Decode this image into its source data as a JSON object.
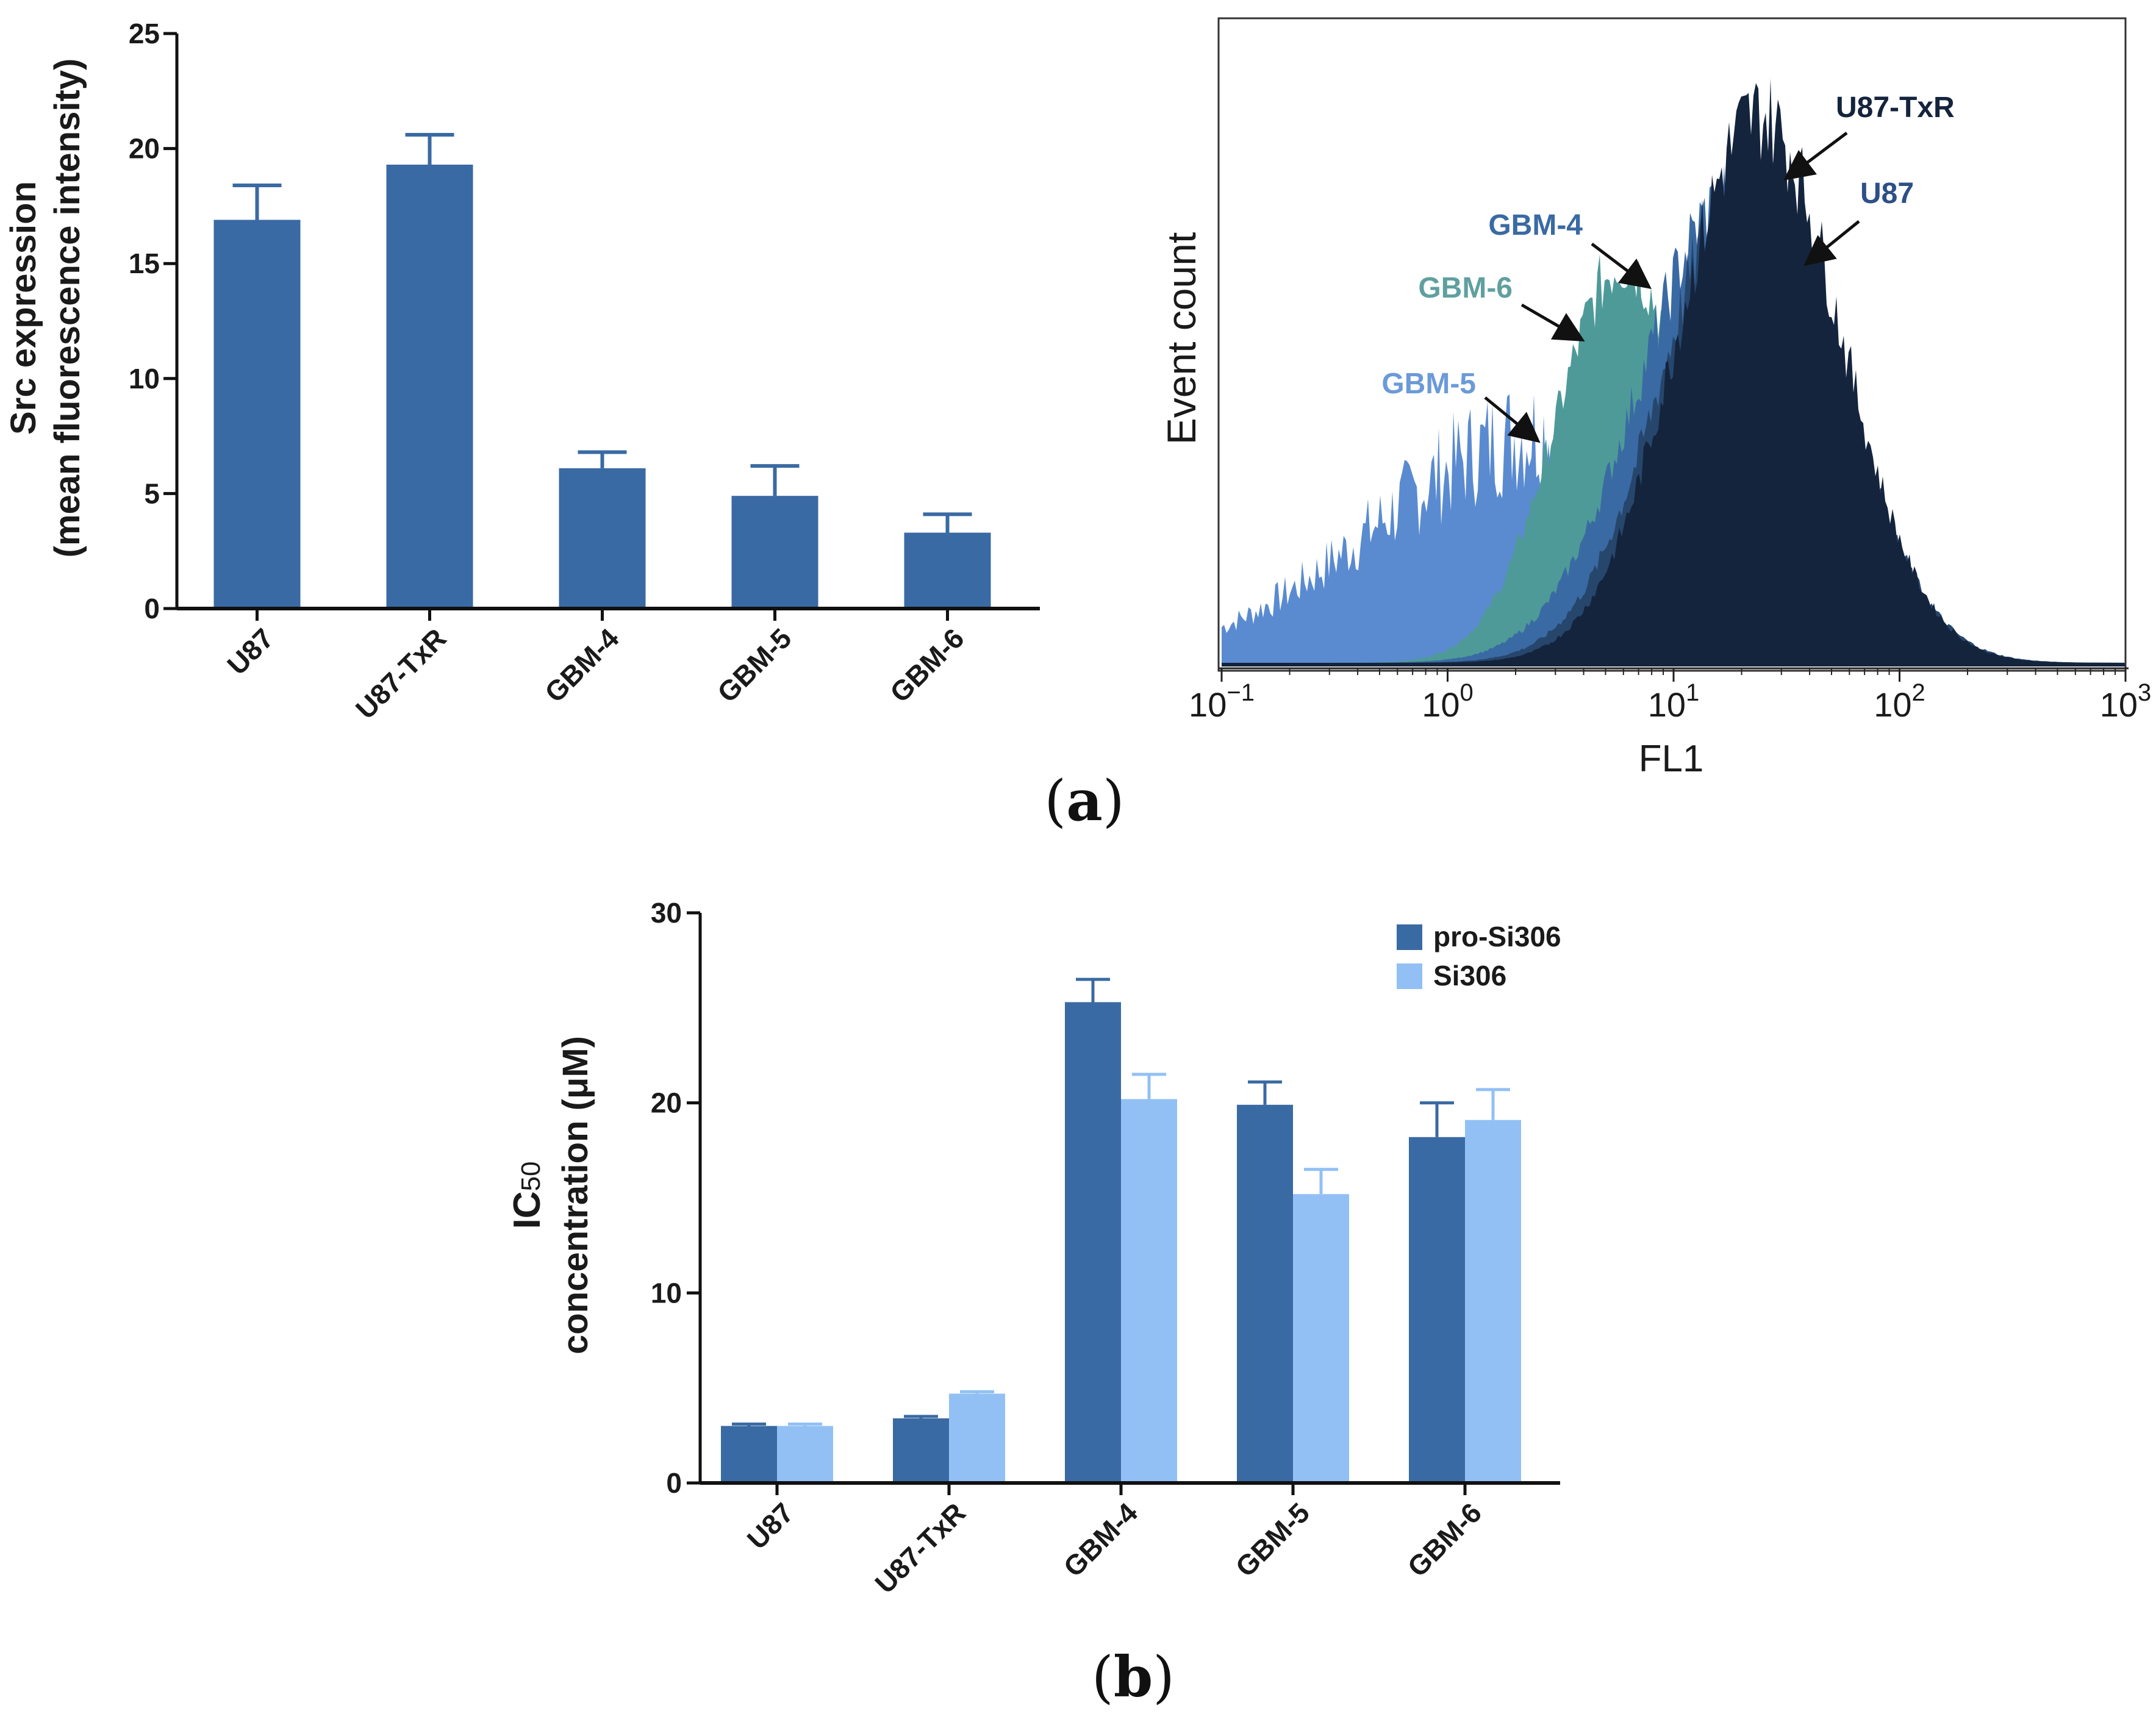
{
  "chart_data": [
    {
      "id": "a-left",
      "type": "bar",
      "categories": [
        "U87",
        "U87-TxR",
        "GBM-4",
        "GBM-5",
        "GBM-6"
      ],
      "values": [
        16.9,
        19.3,
        6.1,
        4.9,
        3.3
      ],
      "errors": [
        1.5,
        1.3,
        0.7,
        1.3,
        0.8
      ],
      "ylabel_line1": "Src expression",
      "ylabel_line2": "(mean fluorescence intensity)",
      "xlabel": "",
      "ylim": [
        0,
        25
      ],
      "yticks": [
        0,
        5,
        10,
        15,
        20,
        25
      ],
      "bar_color": "#3a6aa3"
    },
    {
      "id": "a-right",
      "type": "area",
      "title": "",
      "xlabel": "FL1",
      "ylabel": "Event count",
      "xscale": "log",
      "xlim_exponents": [
        -1,
        3
      ],
      "xtick_base": "10",
      "xtick_exponents": [
        "−1",
        "0",
        "1",
        "2",
        "3"
      ],
      "series": [
        {
          "name": "GBM-5",
          "color": "#5a8bd0",
          "peak_log": 0.45,
          "width": 0.75,
          "height": 0.36
        },
        {
          "name": "GBM-6",
          "color": "#4e9a99",
          "peak_log": 0.78,
          "width": 0.3,
          "height": 0.62
        },
        {
          "name": "GBM-4",
          "color": "#3a6aa3",
          "peak_log": 1.25,
          "width": 0.4,
          "height": 0.72
        },
        {
          "name": "U87",
          "color": "#27466c",
          "peak_log": 1.35,
          "width": 0.38,
          "height": 0.78
        },
        {
          "name": "U87-TxR",
          "color": "#14243d",
          "peak_log": 1.38,
          "width": 0.36,
          "height": 0.85
        }
      ],
      "annotations": [
        {
          "label": "U87-TxR",
          "color": "#14243d"
        },
        {
          "label": "U87",
          "color": "#2d5087"
        },
        {
          "label": "GBM-4",
          "color": "#3a6aa3"
        },
        {
          "label": "GBM-6",
          "color": "#5fa09f"
        },
        {
          "label": "GBM-5",
          "color": "#6b9ad8"
        }
      ]
    },
    {
      "id": "b",
      "type": "bar",
      "categories": [
        "U87",
        "U87-TxR",
        "GBM-4",
        "GBM-5",
        "GBM-6"
      ],
      "series": [
        {
          "name": "pro-Si306",
          "color": "#3a6aa3",
          "values": [
            3.0,
            3.4,
            25.3,
            19.9,
            18.2
          ],
          "errors": [
            0.1,
            0.1,
            1.2,
            1.2,
            1.8
          ]
        },
        {
          "name": "Si306",
          "color": "#92c0f5",
          "values": [
            3.0,
            4.7,
            20.2,
            15.2,
            19.1
          ],
          "errors": [
            0.1,
            0.1,
            1.3,
            1.3,
            1.6
          ]
        }
      ],
      "ylabel_main": "IC",
      "ylabel_sub": "50",
      "ylabel_line2": "concentration (μM)",
      "ylim": [
        0,
        30
      ],
      "yticks": [
        0,
        10,
        20,
        30
      ],
      "legend_position": "top-right"
    }
  ],
  "panel_labels": {
    "a": "a",
    "b": "b"
  }
}
